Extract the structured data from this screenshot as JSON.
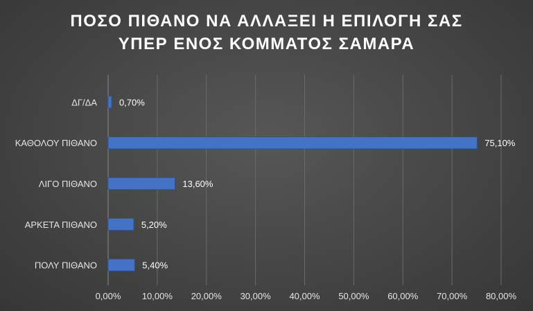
{
  "chart_data": {
    "type": "bar",
    "orientation": "horizontal",
    "title_lines": [
      "ΠΟΣΟ ΠΙΘΑΝΟ ΝΑ ΑΛΛΑΞΕΙ Η ΕΠΙΛΟΓΗ ΣΑΣ",
      "ΥΠΕΡ ΕΝΟΣ ΚΟΜΜΑΤΟΣ ΣΑΜΑΡΑ"
    ],
    "categories": [
      "ΔΓ/ΔΑ",
      "ΚΑΘΟΛΟΥ ΠΙΘΑΝΟ",
      "ΛΙΓΟ ΠΙΘΑΝΟ",
      "ΑΡΚΕΤΑ ΠΙΘΑΝΟ",
      "ΠΟΛΥ ΠΙΘΑΝΟ"
    ],
    "values": [
      0.7,
      75.1,
      13.6,
      5.2,
      5.4
    ],
    "data_labels": [
      "0,70%",
      "75,10%",
      "13,60%",
      "5,20%",
      "5,40%"
    ],
    "xlim": [
      0,
      80
    ],
    "x_ticks": [
      0,
      10,
      20,
      30,
      40,
      50,
      60,
      70,
      80
    ],
    "x_tick_labels": [
      "0,00%",
      "10,00%",
      "20,00%",
      "30,00%",
      "40,00%",
      "50,00%",
      "60,00%",
      "70,00%",
      "80,00%"
    ],
    "grid": "vertical",
    "colors": {
      "bar": "#4472c4",
      "bar_edge": "#2f5597",
      "grid": "#6a6a6a",
      "text": "#e6e6e6"
    }
  }
}
